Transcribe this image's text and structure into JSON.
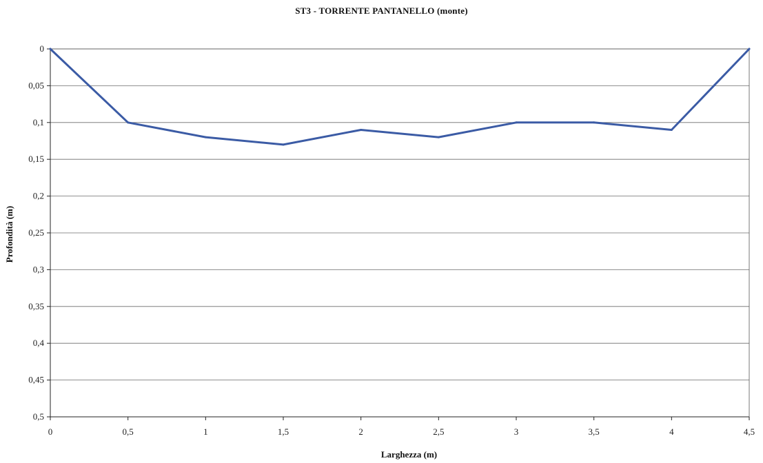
{
  "chart_data": {
    "type": "line",
    "title": "ST3 - TORRENTE PANTANELLO (monte)",
    "xlabel": "Larghezza (m)",
    "ylabel": "Profondità (m)",
    "xlim": [
      0,
      4.5
    ],
    "ylim": [
      0,
      0.5
    ],
    "y_inverted": true,
    "grid": true,
    "x_ticks": [
      "0",
      "0,5",
      "1",
      "1,5",
      "2",
      "2,5",
      "3",
      "3,5",
      "4",
      "4,5"
    ],
    "y_ticks": [
      "0",
      "0,05",
      "0,1",
      "0,15",
      "0,2",
      "0,25",
      "0,3",
      "0,35",
      "0,4",
      "0,45",
      "0,5"
    ],
    "series": [
      {
        "color": "#3b5ba5",
        "x": [
          0,
          0.5,
          1,
          1.5,
          2,
          2.5,
          3,
          3.5,
          4,
          4.5
        ],
        "y": [
          0,
          0.1,
          0.12,
          0.13,
          0.11,
          0.12,
          0.1,
          0.1,
          0.11,
          0
        ]
      }
    ]
  }
}
